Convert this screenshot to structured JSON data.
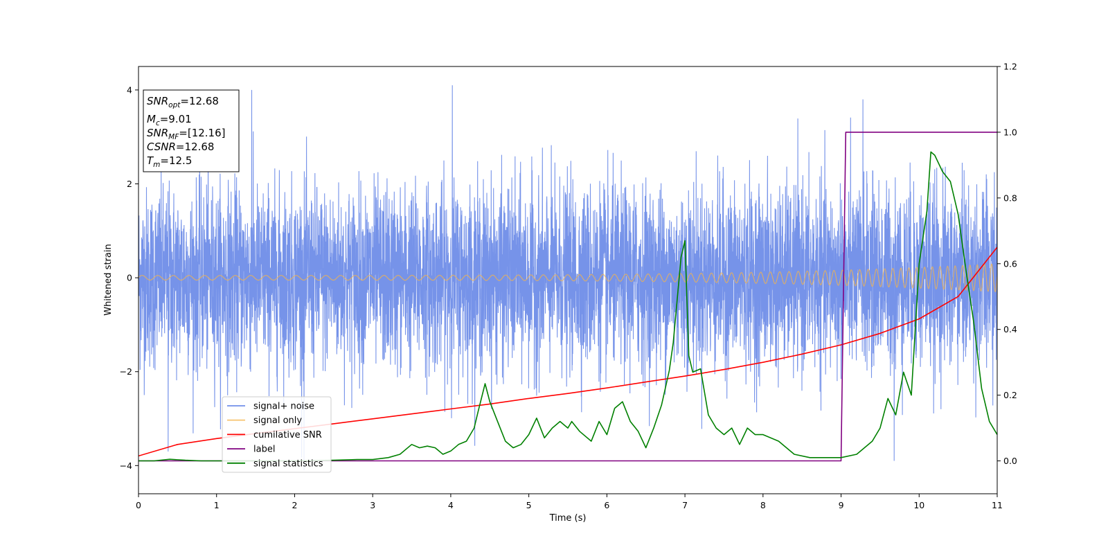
{
  "chart_data": {
    "type": "line",
    "xlabel": "Time (s)",
    "ylabel_left": "Whitened strain",
    "ylabel_right": "",
    "xlim": [
      0,
      11
    ],
    "ylim_left": [
      -4.6,
      4.5
    ],
    "ylim_right": [
      -0.1,
      1.2
    ],
    "xticks": [
      "0",
      "1",
      "2",
      "3",
      "4",
      "5",
      "6",
      "7",
      "8",
      "9",
      "10",
      "11"
    ],
    "yticks_left": [
      "−4",
      "−2",
      "0",
      "2",
      "4"
    ],
    "yticks_right": [
      "0.0",
      "0.2",
      "0.4",
      "0.6",
      "0.8",
      "1.0",
      "1.2"
    ],
    "grid": false,
    "legend_position": "lower-left",
    "annotation": {
      "lines": [
        {
          "base": "SNR",
          "sub": "opt",
          "value": "=12.68"
        },
        {
          "base": "M",
          "sub": "c",
          "value": "=9.01"
        },
        {
          "base": "SNR",
          "sub": "MF",
          "value": "=[12.16]"
        },
        {
          "base": "CSNR",
          "sub": "",
          "value": "=12.68"
        },
        {
          "base": "T",
          "sub": "m",
          "value": "=12.5"
        }
      ]
    },
    "series": [
      {
        "name": "signal+ noise",
        "axis": "left",
        "color": "#4169e1",
        "kind": "noise",
        "envelope": {
          "typical_amplitude": 1.4,
          "peak_amplitude": 4.1,
          "sample_rate_per_s": 500
        },
        "notable_peaks": [
          [
            0.38,
            -3.7
          ],
          [
            1.45,
            4.0
          ],
          [
            2.12,
            -4.15
          ],
          [
            4.02,
            4.1
          ],
          [
            9.28,
            3.8
          ],
          [
            9.68,
            -3.9
          ]
        ]
      },
      {
        "name": "signal only",
        "axis": "left",
        "color": "#f5b44a",
        "kind": "chirp",
        "amplitude_start": 0.05,
        "amplitude_end": 0.3,
        "cycles_per_s_start": 5.0,
        "cycles_per_s_end": 11.0
      },
      {
        "name": "cumilative SNR",
        "axis": "right",
        "color": "#ff0000",
        "x": [
          0,
          0.5,
          1,
          1.5,
          2,
          2.5,
          3,
          3.5,
          4,
          4.5,
          5,
          5.5,
          6,
          6.5,
          7,
          7.5,
          8,
          8.5,
          9,
          9.5,
          10,
          10.5,
          11
        ],
        "y": [
          0.015,
          0.05,
          0.068,
          0.083,
          0.098,
          0.113,
          0.128,
          0.143,
          0.158,
          0.173,
          0.19,
          0.205,
          0.222,
          0.24,
          0.258,
          0.278,
          0.3,
          0.325,
          0.353,
          0.388,
          0.432,
          0.5,
          0.65
        ]
      },
      {
        "name": "label",
        "axis": "right",
        "color": "#800080",
        "x": [
          0,
          9.0,
          9.06,
          11
        ],
        "y": [
          0.0,
          0.0,
          1.0,
          1.0
        ]
      },
      {
        "name": "signal statistics",
        "axis": "right",
        "color": "#008000",
        "x": [
          0,
          0.2,
          0.4,
          0.6,
          0.8,
          1.0,
          1.5,
          2.0,
          2.5,
          2.8,
          3.0,
          3.2,
          3.35,
          3.5,
          3.6,
          3.7,
          3.8,
          3.9,
          4.0,
          4.1,
          4.2,
          4.3,
          4.35,
          4.44,
          4.5,
          4.6,
          4.7,
          4.8,
          4.9,
          5.0,
          5.1,
          5.2,
          5.3,
          5.4,
          5.5,
          5.55,
          5.65,
          5.8,
          5.9,
          6.0,
          6.1,
          6.2,
          6.3,
          6.4,
          6.5,
          6.6,
          6.7,
          6.8,
          6.85,
          6.95,
          7.0,
          7.05,
          7.1,
          7.2,
          7.3,
          7.4,
          7.5,
          7.6,
          7.7,
          7.8,
          7.9,
          8.0,
          8.2,
          8.4,
          8.6,
          9.0,
          9.2,
          9.4,
          9.5,
          9.6,
          9.7,
          9.8,
          9.9,
          10.0,
          10.1,
          10.15,
          10.2,
          10.3,
          10.4,
          10.5,
          10.6,
          10.7,
          10.8,
          10.9,
          11.0
        ],
        "y": [
          0.0,
          0.0,
          0.005,
          0.002,
          0.0,
          0.0,
          0.0,
          0.0,
          0.002,
          0.004,
          0.004,
          0.01,
          0.02,
          0.05,
          0.04,
          0.045,
          0.04,
          0.02,
          0.03,
          0.05,
          0.06,
          0.1,
          0.15,
          0.235,
          0.18,
          0.12,
          0.06,
          0.04,
          0.05,
          0.08,
          0.13,
          0.07,
          0.1,
          0.12,
          0.1,
          0.12,
          0.09,
          0.06,
          0.12,
          0.08,
          0.16,
          0.18,
          0.12,
          0.09,
          0.04,
          0.1,
          0.17,
          0.275,
          0.36,
          0.62,
          0.67,
          0.32,
          0.27,
          0.28,
          0.14,
          0.1,
          0.08,
          0.1,
          0.05,
          0.1,
          0.08,
          0.08,
          0.06,
          0.02,
          0.01,
          0.01,
          0.02,
          0.06,
          0.1,
          0.19,
          0.14,
          0.27,
          0.2,
          0.6,
          0.76,
          0.94,
          0.93,
          0.88,
          0.85,
          0.75,
          0.58,
          0.42,
          0.22,
          0.12,
          0.08
        ]
      }
    ]
  }
}
